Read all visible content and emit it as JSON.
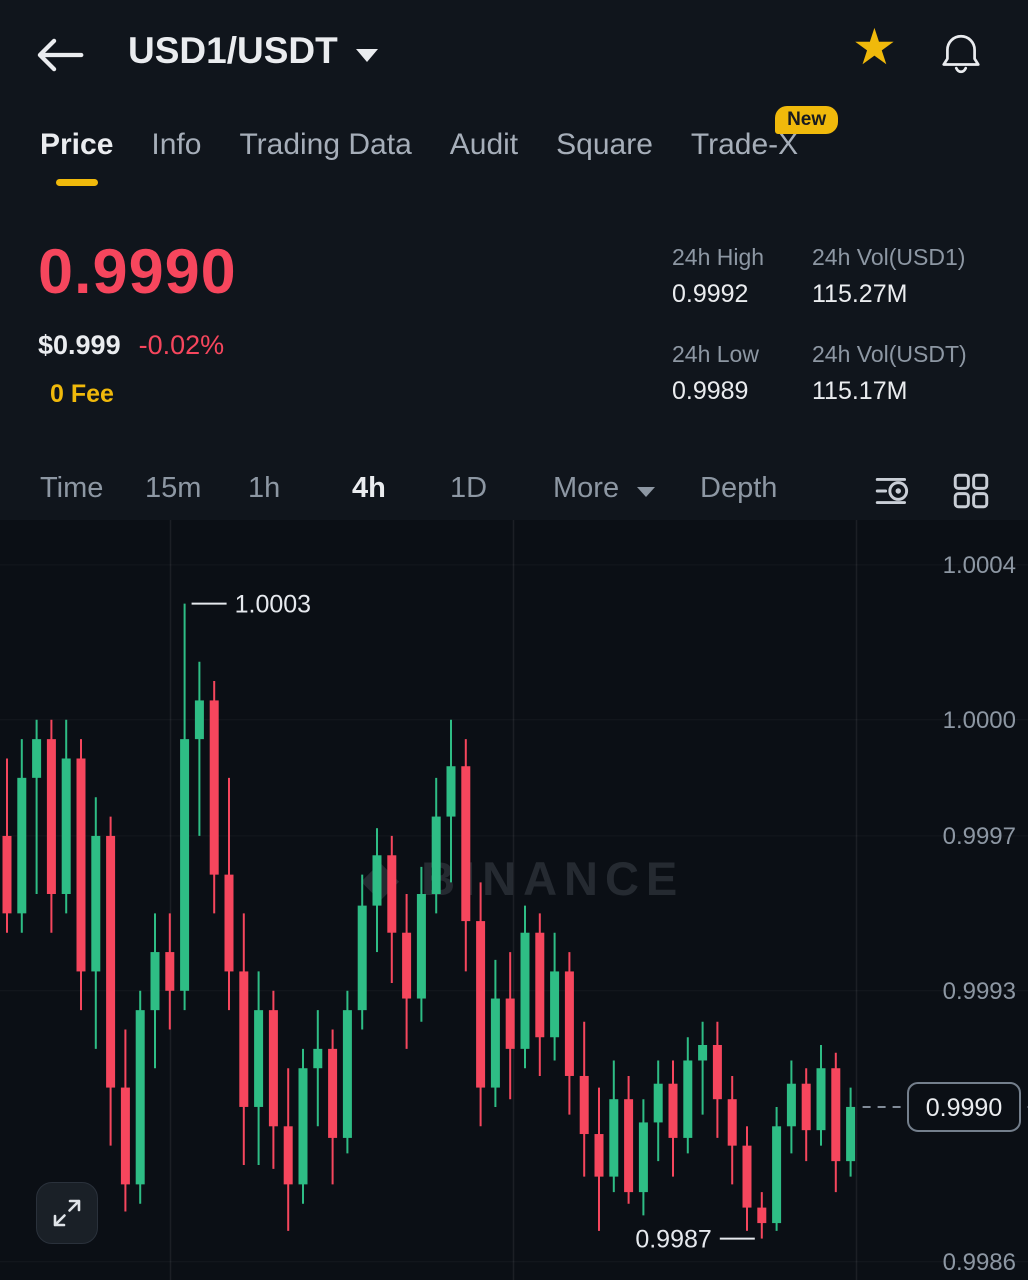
{
  "header": {
    "title": "USD1/USDT"
  },
  "tabs": [
    {
      "label": "Price",
      "active": true
    },
    {
      "label": "Info"
    },
    {
      "label": "Trading Data"
    },
    {
      "label": "Audit"
    },
    {
      "label": "Square"
    },
    {
      "label": "Trade-X",
      "badge": "New"
    }
  ],
  "price": {
    "last": "0.9990",
    "fiat": "$0.999",
    "change": "-0.02%",
    "fee": "0 Fee"
  },
  "stats": [
    {
      "label": "24h High",
      "value": "0.9992"
    },
    {
      "label": "24h Vol(USD1)",
      "value": "115.27M"
    },
    {
      "label": "24h Low",
      "value": "0.9989"
    },
    {
      "label": "24h Vol(USDT)",
      "value": "115.17M"
    }
  ],
  "timeframes": {
    "items": [
      "Time",
      "15m",
      "1h",
      "4h",
      "1D",
      "More",
      "Depth"
    ],
    "active": "4h"
  },
  "icons": {
    "back": "arrow-left",
    "title_caret": "chevron-down",
    "favorite": "star-filled",
    "notifications": "bell",
    "more_caret": "chevron-down",
    "indicator": "indicator-search",
    "layout": "grid-2x2",
    "expand": "expand-arrows"
  },
  "colors": {
    "accent": "#f0b90b",
    "up": "#2ebd85",
    "down": "#f6465d",
    "text_primary": "#eaecef",
    "text_secondary": "#8d97a3",
    "background": "#10151c",
    "chart_background": "#0b0f15"
  },
  "chart_data": {
    "type": "candlestick",
    "pair": "USD1/USDT",
    "interval": "4h",
    "watermark": "BINANCE",
    "y_axis_labels": [
      "1.0004",
      "1.0000",
      "0.9997",
      "0.9993",
      "0.9986"
    ],
    "current_price": "0.9990",
    "high_annotation": "1.0003",
    "low_annotation": "0.9987",
    "price_min": 0.998553,
    "price_max": 1.000516,
    "colors": {
      "up": "#2ebd85",
      "down": "#f6465d"
    },
    "candles": [
      [
        0.9997,
        0.9999,
        0.99945,
        0.9995
      ],
      [
        0.9995,
        0.99995,
        0.99945,
        0.99985
      ],
      [
        0.99985,
        1.0,
        0.99955,
        0.99995
      ],
      [
        0.99995,
        1.0,
        0.99945,
        0.99955
      ],
      [
        0.99955,
        1.0,
        0.9995,
        0.9999
      ],
      [
        0.9999,
        0.99995,
        0.99925,
        0.99935
      ],
      [
        0.99935,
        0.9998,
        0.99915,
        0.9997
      ],
      [
        0.9997,
        0.99975,
        0.9989,
        0.99905
      ],
      [
        0.99905,
        0.9992,
        0.99873,
        0.9988
      ],
      [
        0.9988,
        0.9993,
        0.99875,
        0.99925
      ],
      [
        0.99925,
        0.9995,
        0.9991,
        0.9994
      ],
      [
        0.9994,
        0.9995,
        0.9992,
        0.9993
      ],
      [
        0.9993,
        1.0003,
        0.99925,
        0.99995
      ],
      [
        0.99995,
        1.00015,
        0.9997,
        1.00005
      ],
      [
        1.00005,
        1.0001,
        0.9995,
        0.9996
      ],
      [
        0.9996,
        0.99985,
        0.99925,
        0.99935
      ],
      [
        0.99935,
        0.9995,
        0.99885,
        0.999
      ],
      [
        0.999,
        0.99935,
        0.99885,
        0.99925
      ],
      [
        0.99925,
        0.9993,
        0.99884,
        0.99895
      ],
      [
        0.99895,
        0.9991,
        0.99868,
        0.9988
      ],
      [
        0.9988,
        0.99915,
        0.99875,
        0.9991
      ],
      [
        0.9991,
        0.99925,
        0.99895,
        0.99915
      ],
      [
        0.99915,
        0.9992,
        0.9988,
        0.99892
      ],
      [
        0.99892,
        0.9993,
        0.99888,
        0.99925
      ],
      [
        0.99925,
        0.9996,
        0.9992,
        0.99952
      ],
      [
        0.99952,
        0.99972,
        0.9994,
        0.99965
      ],
      [
        0.99965,
        0.9997,
        0.99932,
        0.99945
      ],
      [
        0.99945,
        0.99955,
        0.99915,
        0.99928
      ],
      [
        0.99928,
        0.99962,
        0.99922,
        0.99955
      ],
      [
        0.99955,
        0.99985,
        0.9995,
        0.99975
      ],
      [
        0.99975,
        1.0,
        0.99958,
        0.99988
      ],
      [
        0.99988,
        0.99995,
        0.99935,
        0.99948
      ],
      [
        0.99948,
        0.99958,
        0.99895,
        0.99905
      ],
      [
        0.99905,
        0.99938,
        0.999,
        0.99928
      ],
      [
        0.99928,
        0.9994,
        0.99902,
        0.99915
      ],
      [
        0.99915,
        0.99952,
        0.9991,
        0.99945
      ],
      [
        0.99945,
        0.9995,
        0.99908,
        0.99918
      ],
      [
        0.99918,
        0.99945,
        0.99912,
        0.99935
      ],
      [
        0.99935,
        0.9994,
        0.99898,
        0.99908
      ],
      [
        0.99908,
        0.99922,
        0.99882,
        0.99893
      ],
      [
        0.99893,
        0.99905,
        0.99868,
        0.99882
      ],
      [
        0.99882,
        0.99912,
        0.99878,
        0.99902
      ],
      [
        0.99902,
        0.99908,
        0.99875,
        0.99878
      ],
      [
        0.99878,
        0.99902,
        0.99872,
        0.99896
      ],
      [
        0.99896,
        0.99912,
        0.99886,
        0.99906
      ],
      [
        0.99906,
        0.99912,
        0.99882,
        0.99892
      ],
      [
        0.99892,
        0.99918,
        0.99888,
        0.99912
      ],
      [
        0.99912,
        0.99922,
        0.99898,
        0.99916
      ],
      [
        0.99916,
        0.99922,
        0.99892,
        0.99902
      ],
      [
        0.99902,
        0.99908,
        0.9988,
        0.9989
      ],
      [
        0.9989,
        0.99895,
        0.99868,
        0.99874
      ],
      [
        0.99874,
        0.99878,
        0.99866,
        0.9987
      ],
      [
        0.9987,
        0.999,
        0.99868,
        0.99895
      ],
      [
        0.99895,
        0.99912,
        0.99888,
        0.99906
      ],
      [
        0.99906,
        0.9991,
        0.99886,
        0.99894
      ],
      [
        0.99894,
        0.99916,
        0.9989,
        0.9991
      ],
      [
        0.9991,
        0.99914,
        0.99878,
        0.99886
      ],
      [
        0.99886,
        0.99905,
        0.99882,
        0.999
      ]
    ]
  }
}
